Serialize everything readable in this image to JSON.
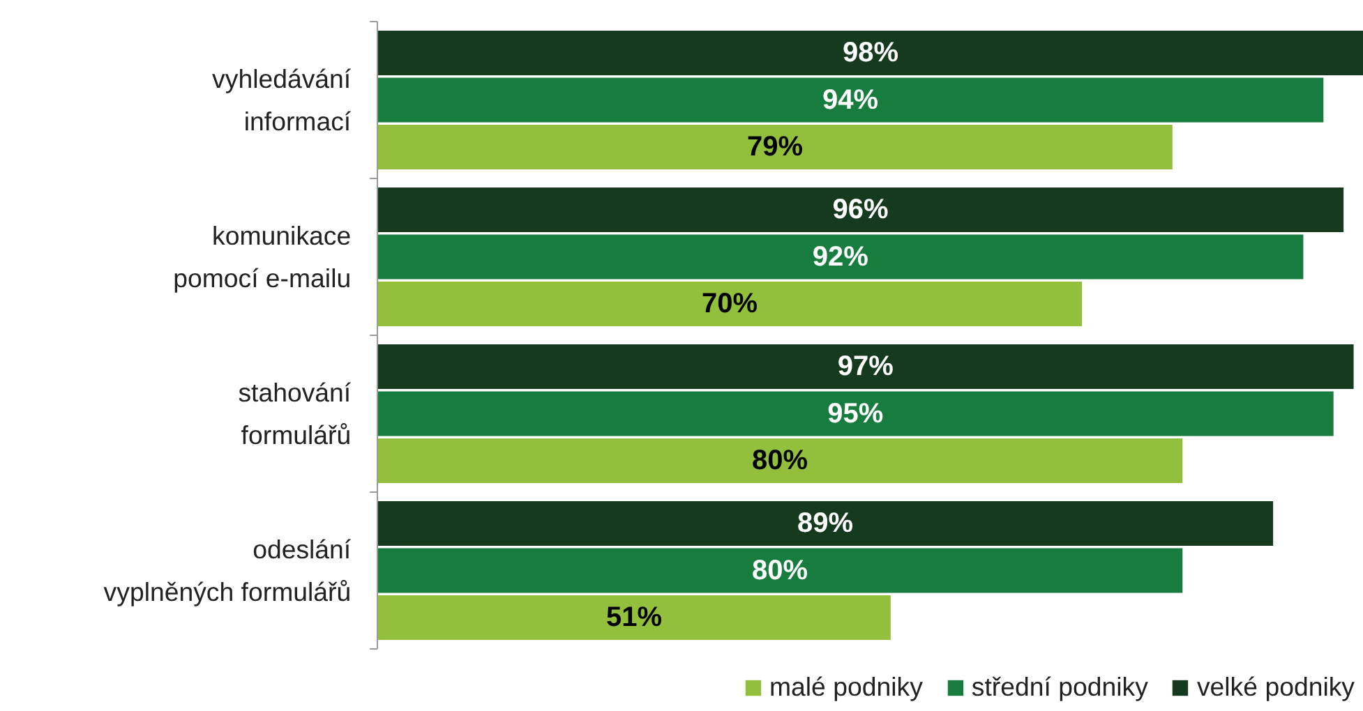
{
  "chart_data": {
    "type": "bar",
    "orientation": "horizontal",
    "categories": [
      "vyhledávání\ninformací",
      "komunikace\npomocí e-mailu",
      "stahování\nformulářů",
      "odeslání\nvyplněných formulářů"
    ],
    "series": [
      {
        "name": "malé podniky",
        "color": "#92c03c",
        "values": [
          79,
          70,
          80,
          51
        ],
        "value_labels": [
          "79%",
          "70%",
          "80%",
          "51%"
        ]
      },
      {
        "name": "střední podniky",
        "color": "#167d3e",
        "values": [
          94,
          92,
          95,
          80
        ],
        "value_labels": [
          "94%",
          "92%",
          "95%",
          "80%"
        ]
      },
      {
        "name": "velké podniky",
        "color": "#163a1e",
        "values": [
          98,
          96,
          97,
          89
        ],
        "value_labels": [
          "98%",
          "96%",
          "97%",
          "89%"
        ]
      }
    ],
    "legend": "bottom"
  }
}
